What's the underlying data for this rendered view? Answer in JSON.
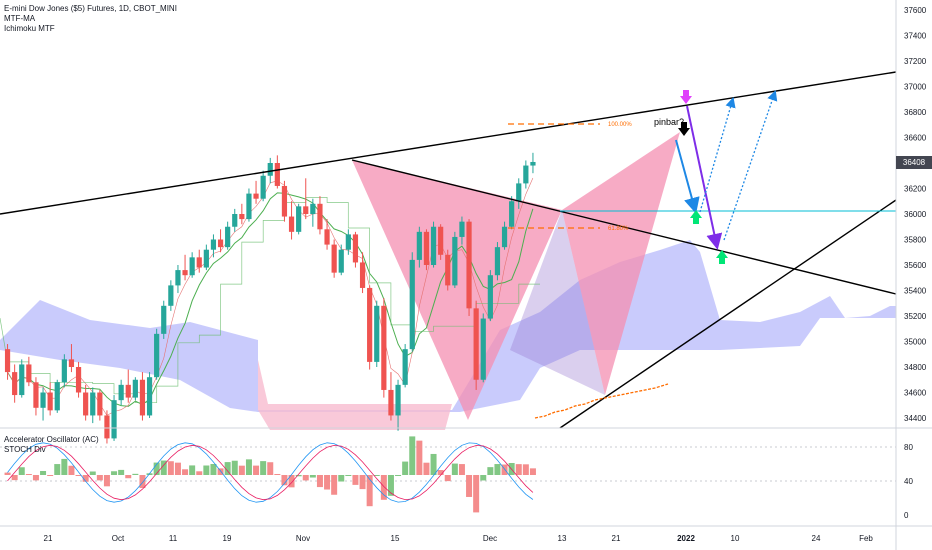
{
  "legend": {
    "symbol": "E-mini Dow Jones ($5) Futures, 1D, CBOT_MINI",
    "ind1": "MTF-MA",
    "ind2": "Ichimoku MTF"
  },
  "lower_legend": {
    "ind1": "Accelerator Oscillator (AC)",
    "ind2": "STOCH Div"
  },
  "annotations": {
    "pinbar": "pinbar?",
    "fib_100": "100.00%",
    "fib_618": "61.80%"
  },
  "last_price": "36408",
  "colors": {
    "up": "#26a69a",
    "down": "#ef5350",
    "cloud": "#b2b5fb",
    "pattern": "#f48fb1",
    "trendline": "#000000",
    "horizontal": "#00bcd4",
    "fib": "#ff6d00",
    "arrow_blue": "#1e88e5",
    "arrow_purple": "#7e2de8",
    "marker_up": "#00e676",
    "marker_down": "#000000",
    "marker_top": "#e040fb",
    "ac_green": "#81c784",
    "ac_red": "#f48c8c"
  },
  "chart_data": {
    "type": "candlestick",
    "price_axis": {
      "ticks": [
        "37600",
        "37400",
        "37200",
        "37000",
        "36800",
        "36600",
        "36400",
        "36200",
        "36000",
        "35800",
        "35600",
        "35400",
        "35200",
        "35000",
        "34800",
        "34600",
        "34400"
      ],
      "ylim": [
        34300,
        37700
      ]
    },
    "oscillator_axis": {
      "ticks": [
        "80",
        "40",
        "0"
      ],
      "ylim": [
        0,
        100
      ]
    },
    "time_axis": {
      "ticks": [
        "21",
        "Oct",
        "11",
        "19",
        "Nov",
        "15",
        "Dec",
        "13",
        "21",
        "2022",
        "10",
        "24",
        "Feb"
      ]
    },
    "candles": [
      [
        34940,
        34980,
        34700,
        34760
      ],
      [
        34760,
        34820,
        34520,
        34580
      ],
      [
        34580,
        34860,
        34560,
        34820
      ],
      [
        34820,
        34880,
        34650,
        34680
      ],
      [
        34680,
        34720,
        34420,
        34480
      ],
      [
        34480,
        34640,
        34380,
        34600
      ],
      [
        34600,
        34680,
        34420,
        34460
      ],
      [
        34460,
        34700,
        34440,
        34680
      ],
      [
        34680,
        34900,
        34640,
        34860
      ],
      [
        34860,
        34980,
        34760,
        34800
      ],
      [
        34800,
        34840,
        34560,
        34600
      ],
      [
        34600,
        34660,
        34380,
        34420
      ],
      [
        34420,
        34640,
        34360,
        34600
      ],
      [
        34600,
        34620,
        34380,
        34420
      ],
      [
        34420,
        34460,
        34200,
        34240
      ],
      [
        34240,
        34580,
        34220,
        34540
      ],
      [
        34540,
        34700,
        34500,
        34660
      ],
      [
        34660,
        34780,
        34520,
        34560
      ],
      [
        34560,
        34720,
        34540,
        34700
      ],
      [
        34700,
        34760,
        34380,
        34420
      ],
      [
        34420,
        34760,
        34400,
        34720
      ],
      [
        34720,
        35100,
        34700,
        35060
      ],
      [
        35060,
        35320,
        35020,
        35280
      ],
      [
        35280,
        35480,
        35240,
        35440
      ],
      [
        35440,
        35600,
        35380,
        35560
      ],
      [
        35560,
        35680,
        35480,
        35520
      ],
      [
        35520,
        35700,
        35500,
        35660
      ],
      [
        35660,
        35720,
        35540,
        35580
      ],
      [
        35580,
        35760,
        35560,
        35720
      ],
      [
        35720,
        35840,
        35660,
        35800
      ],
      [
        35800,
        35880,
        35700,
        35740
      ],
      [
        35740,
        35940,
        35720,
        35900
      ],
      [
        35900,
        36040,
        35860,
        36000
      ],
      [
        36000,
        36080,
        35920,
        35960
      ],
      [
        35960,
        36200,
        35940,
        36160
      ],
      [
        36160,
        36260,
        36080,
        36120
      ],
      [
        36120,
        36340,
        36100,
        36300
      ],
      [
        36300,
        36440,
        36240,
        36400
      ],
      [
        36400,
        36460,
        36200,
        36220
      ],
      [
        36220,
        36260,
        35940,
        35980
      ],
      [
        35980,
        36100,
        35800,
        35860
      ],
      [
        35860,
        36080,
        35840,
        36060
      ],
      [
        36060,
        36280,
        35960,
        36000
      ],
      [
        36000,
        36120,
        35900,
        36080
      ],
      [
        36080,
        36140,
        35840,
        35880
      ],
      [
        35880,
        35960,
        35720,
        35760
      ],
      [
        35760,
        35800,
        35500,
        35540
      ],
      [
        35540,
        35760,
        35520,
        35720
      ],
      [
        35720,
        35880,
        35680,
        35840
      ],
      [
        35840,
        35860,
        35580,
        35620
      ],
      [
        35620,
        35700,
        35380,
        35420
      ],
      [
        35420,
        35440,
        34780,
        34840
      ],
      [
        34840,
        35320,
        34800,
        35280
      ],
      [
        35280,
        35340,
        34560,
        34620
      ],
      [
        34620,
        34760,
        34380,
        34420
      ],
      [
        34420,
        34700,
        34300,
        34660
      ],
      [
        34660,
        34980,
        34640,
        34940
      ],
      [
        34940,
        35700,
        34920,
        35640
      ],
      [
        35640,
        35900,
        35580,
        35860
      ],
      [
        35860,
        35880,
        35560,
        35600
      ],
      [
        35600,
        35940,
        35580,
        35900
      ],
      [
        35900,
        35920,
        35640,
        35680
      ],
      [
        35680,
        35720,
        35400,
        35440
      ],
      [
        35440,
        35860,
        35420,
        35820
      ],
      [
        35820,
        35980,
        35760,
        35940
      ],
      [
        35940,
        35960,
        35200,
        35260
      ],
      [
        35260,
        35320,
        34620,
        34700
      ],
      [
        34700,
        35220,
        34680,
        35180
      ],
      [
        35180,
        35560,
        35160,
        35520
      ],
      [
        35520,
        35780,
        35480,
        35740
      ],
      [
        35740,
        35940,
        35720,
        35900
      ],
      [
        35900,
        36140,
        35880,
        36100
      ],
      [
        36100,
        36280,
        36040,
        36240
      ],
      [
        36240,
        36420,
        36200,
        36380
      ],
      [
        36380,
        36480,
        36320,
        36408
      ]
    ]
  }
}
